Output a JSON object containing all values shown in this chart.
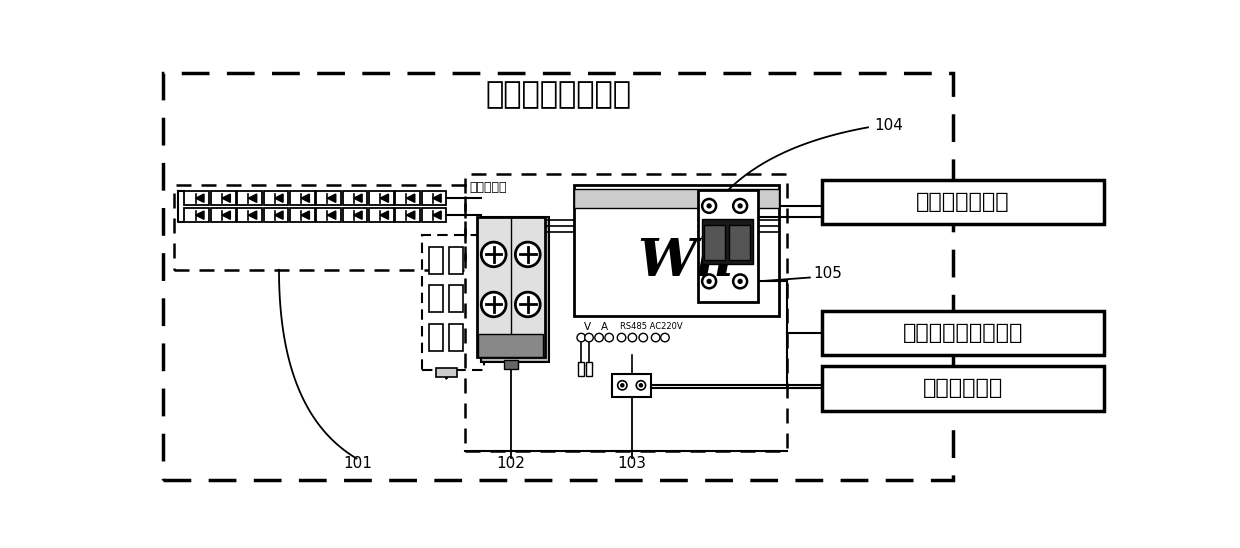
{
  "title": "并网发电计量系统",
  "label_104": "104",
  "label_105": "105",
  "label_101": "101",
  "label_102": "102",
  "label_103": "103",
  "box_qingxi": "清洗小车电控笱",
  "box_guangfu": "光伏电站数据采集器",
  "box_zuchuanshi": "组串式逆变器",
  "label_peidianxiang": "光伏配电笱",
  "bg_color": "#ffffff",
  "lc": "#000000"
}
